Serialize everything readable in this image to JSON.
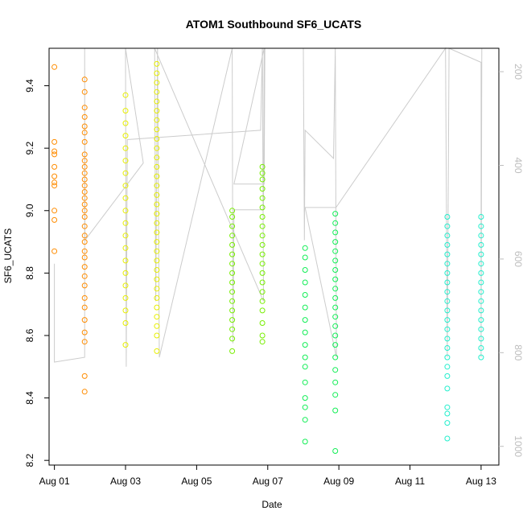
{
  "chart_data": {
    "type": "scatter",
    "title": "ATOM1 Southbound SF6_UCATS",
    "xlabel": "Date",
    "ylabel": "SF6_UCATS",
    "x_ticks": [
      "Aug 01",
      "Aug 03",
      "Aug 05",
      "Aug 07",
      "Aug 09",
      "Aug 11",
      "Aug 13"
    ],
    "x_tick_days": [
      1,
      3,
      5,
      7,
      9,
      11,
      13
    ],
    "xlim": [
      0.85,
      13.5
    ],
    "ylim": [
      8.185,
      9.52
    ],
    "y_ticks": [
      8.2,
      8.4,
      8.6,
      8.8,
      9.0,
      9.2,
      9.4
    ],
    "right_axis": {
      "label": "",
      "ticks": [
        200,
        400,
        600,
        800,
        1000
      ],
      "lim": [
        1040,
        150
      ],
      "color": "#bdbdbd"
    },
    "grid": false,
    "series": [
      {
        "color": "#ff8c00",
        "points": [
          [
            1.0,
            9.46
          ],
          [
            1.0,
            9.22
          ],
          [
            1.0,
            9.19
          ],
          [
            1.0,
            9.18
          ],
          [
            1.0,
            9.14
          ],
          [
            1.0,
            9.11
          ],
          [
            1.0,
            9.09
          ],
          [
            1.0,
            9.08
          ],
          [
            1.0,
            9.0
          ],
          [
            1.0,
            8.97
          ],
          [
            1.0,
            8.87
          ],
          [
            1.85,
            9.42
          ],
          [
            1.85,
            9.38
          ],
          [
            1.85,
            9.33
          ],
          [
            1.85,
            9.3
          ],
          [
            1.85,
            9.27
          ],
          [
            1.85,
            9.25
          ],
          [
            1.85,
            9.22
          ],
          [
            1.85,
            9.18
          ],
          [
            1.85,
            9.16
          ],
          [
            1.85,
            9.14
          ],
          [
            1.85,
            9.12
          ],
          [
            1.85,
            9.1
          ],
          [
            1.85,
            9.08
          ],
          [
            1.85,
            9.06
          ],
          [
            1.85,
            9.04
          ],
          [
            1.85,
            9.02
          ],
          [
            1.85,
            9.0
          ],
          [
            1.85,
            8.98
          ],
          [
            1.85,
            8.95
          ],
          [
            1.85,
            8.92
          ],
          [
            1.85,
            8.9
          ],
          [
            1.85,
            8.87
          ],
          [
            1.85,
            8.85
          ],
          [
            1.85,
            8.82
          ],
          [
            1.85,
            8.79
          ],
          [
            1.85,
            8.76
          ],
          [
            1.85,
            8.72
          ],
          [
            1.85,
            8.69
          ],
          [
            1.85,
            8.65
          ],
          [
            1.85,
            8.61
          ],
          [
            1.85,
            8.58
          ],
          [
            1.85,
            8.47
          ],
          [
            1.85,
            8.42
          ]
        ]
      },
      {
        "color": "#e6ee00",
        "points": [
          [
            3.0,
            9.37
          ],
          [
            3.0,
            9.32
          ],
          [
            3.0,
            9.28
          ],
          [
            3.0,
            9.24
          ],
          [
            3.0,
            9.2
          ],
          [
            3.0,
            9.16
          ],
          [
            3.0,
            9.12
          ],
          [
            3.0,
            9.08
          ],
          [
            3.0,
            9.04
          ],
          [
            3.0,
            9.0
          ],
          [
            3.0,
            8.96
          ],
          [
            3.0,
            8.92
          ],
          [
            3.0,
            8.88
          ],
          [
            3.0,
            8.84
          ],
          [
            3.0,
            8.8
          ],
          [
            3.0,
            8.76
          ],
          [
            3.0,
            8.72
          ],
          [
            3.0,
            8.68
          ],
          [
            3.0,
            8.64
          ],
          [
            3.0,
            8.57
          ],
          [
            3.88,
            9.47
          ],
          [
            3.88,
            9.44
          ],
          [
            3.88,
            9.41
          ],
          [
            3.88,
            9.38
          ],
          [
            3.88,
            9.35
          ],
          [
            3.88,
            9.32
          ],
          [
            3.88,
            9.29
          ],
          [
            3.88,
            9.26
          ],
          [
            3.88,
            9.23
          ],
          [
            3.88,
            9.2
          ],
          [
            3.88,
            9.17
          ],
          [
            3.88,
            9.14
          ],
          [
            3.88,
            9.11
          ],
          [
            3.88,
            9.08
          ],
          [
            3.88,
            9.05
          ],
          [
            3.88,
            9.02
          ],
          [
            3.88,
            8.99
          ],
          [
            3.88,
            8.96
          ],
          [
            3.88,
            8.93
          ],
          [
            3.88,
            8.9
          ],
          [
            3.88,
            8.87
          ],
          [
            3.88,
            8.84
          ],
          [
            3.88,
            8.81
          ],
          [
            3.88,
            8.78
          ],
          [
            3.88,
            8.75
          ],
          [
            3.88,
            8.72
          ],
          [
            3.88,
            8.69
          ],
          [
            3.88,
            8.66
          ],
          [
            3.88,
            8.63
          ],
          [
            3.88,
            8.6
          ],
          [
            3.88,
            8.55
          ]
        ]
      },
      {
        "color": "#77ee00",
        "points": [
          [
            6.0,
            9.0
          ],
          [
            6.0,
            8.98
          ],
          [
            6.0,
            8.95
          ],
          [
            6.0,
            8.92
          ],
          [
            6.0,
            8.89
          ],
          [
            6.0,
            8.86
          ],
          [
            6.0,
            8.83
          ],
          [
            6.0,
            8.8
          ],
          [
            6.0,
            8.77
          ],
          [
            6.0,
            8.74
          ],
          [
            6.0,
            8.71
          ],
          [
            6.0,
            8.68
          ],
          [
            6.0,
            8.65
          ],
          [
            6.0,
            8.62
          ],
          [
            6.0,
            8.59
          ],
          [
            6.0,
            8.55
          ],
          [
            6.85,
            9.14
          ],
          [
            6.85,
            9.12
          ],
          [
            6.85,
            9.1
          ],
          [
            6.85,
            9.07
          ],
          [
            6.85,
            9.04
          ],
          [
            6.85,
            9.01
          ],
          [
            6.85,
            8.98
          ],
          [
            6.85,
            8.95
          ],
          [
            6.85,
            8.92
          ],
          [
            6.85,
            8.89
          ],
          [
            6.85,
            8.86
          ],
          [
            6.85,
            8.83
          ],
          [
            6.85,
            8.8
          ],
          [
            6.85,
            8.77
          ],
          [
            6.85,
            8.74
          ],
          [
            6.85,
            8.71
          ],
          [
            6.85,
            8.68
          ],
          [
            6.85,
            8.64
          ],
          [
            6.85,
            8.6
          ],
          [
            6.85,
            8.58
          ]
        ]
      },
      {
        "color": "#11ee55",
        "points": [
          [
            8.05,
            8.88
          ],
          [
            8.05,
            8.85
          ],
          [
            8.05,
            8.81
          ],
          [
            8.05,
            8.77
          ],
          [
            8.05,
            8.73
          ],
          [
            8.05,
            8.69
          ],
          [
            8.05,
            8.65
          ],
          [
            8.05,
            8.61
          ],
          [
            8.05,
            8.57
          ],
          [
            8.05,
            8.53
          ],
          [
            8.05,
            8.5
          ],
          [
            8.05,
            8.45
          ],
          [
            8.05,
            8.4
          ],
          [
            8.05,
            8.37
          ],
          [
            8.05,
            8.33
          ],
          [
            8.05,
            8.26
          ],
          [
            8.9,
            8.99
          ],
          [
            8.9,
            8.96
          ],
          [
            8.9,
            8.93
          ],
          [
            8.9,
            8.9
          ],
          [
            8.9,
            8.87
          ],
          [
            8.9,
            8.84
          ],
          [
            8.9,
            8.81
          ],
          [
            8.9,
            8.78
          ],
          [
            8.9,
            8.75
          ],
          [
            8.9,
            8.72
          ],
          [
            8.9,
            8.69
          ],
          [
            8.9,
            8.66
          ],
          [
            8.9,
            8.63
          ],
          [
            8.9,
            8.6
          ],
          [
            8.9,
            8.57
          ],
          [
            8.9,
            8.53
          ],
          [
            8.9,
            8.49
          ],
          [
            8.9,
            8.45
          ],
          [
            8.9,
            8.41
          ],
          [
            8.9,
            8.36
          ],
          [
            8.9,
            8.23
          ]
        ]
      },
      {
        "color": "#22eecc",
        "points": [
          [
            12.05,
            8.98
          ],
          [
            12.05,
            8.95
          ],
          [
            12.05,
            8.92
          ],
          [
            12.05,
            8.89
          ],
          [
            12.05,
            8.86
          ],
          [
            12.05,
            8.83
          ],
          [
            12.05,
            8.8
          ],
          [
            12.05,
            8.77
          ],
          [
            12.05,
            8.74
          ],
          [
            12.05,
            8.71
          ],
          [
            12.05,
            8.68
          ],
          [
            12.05,
            8.65
          ],
          [
            12.05,
            8.62
          ],
          [
            12.05,
            8.59
          ],
          [
            12.05,
            8.56
          ],
          [
            12.05,
            8.53
          ],
          [
            12.05,
            8.5
          ],
          [
            12.05,
            8.47
          ],
          [
            12.05,
            8.43
          ],
          [
            12.05,
            8.37
          ],
          [
            12.05,
            8.35
          ],
          [
            12.05,
            8.32
          ],
          [
            12.05,
            8.27
          ],
          [
            13.0,
            8.98
          ],
          [
            13.0,
            8.95
          ],
          [
            13.0,
            8.92
          ],
          [
            13.0,
            8.89
          ],
          [
            13.0,
            8.86
          ],
          [
            13.0,
            8.83
          ],
          [
            13.0,
            8.8
          ],
          [
            13.0,
            8.77
          ],
          [
            13.0,
            8.74
          ],
          [
            13.0,
            8.71
          ],
          [
            13.0,
            8.68
          ],
          [
            13.0,
            8.65
          ],
          [
            13.0,
            8.62
          ],
          [
            13.0,
            8.59
          ],
          [
            13.0,
            8.56
          ],
          [
            13.0,
            8.53
          ]
        ]
      }
    ],
    "altitude_track": {
      "color": "#cccccc",
      "points": [
        [
          1.0,
          610
        ],
        [
          1.0,
          820
        ],
        [
          1.85,
          810
        ],
        [
          1.85,
          150
        ],
        [
          1.86,
          560
        ],
        [
          3.5,
          395
        ],
        [
          3.0,
          150
        ],
        [
          3.02,
          830
        ],
        [
          3.05,
          345
        ],
        [
          6.8,
          325
        ],
        [
          6.85,
          150
        ],
        [
          6.88,
          690
        ],
        [
          3.82,
          150
        ],
        [
          3.85,
          690
        ],
        [
          3.9,
          150
        ],
        [
          3.95,
          810
        ],
        [
          6.0,
          150
        ],
        [
          6.02,
          780
        ],
        [
          6.05,
          495
        ],
        [
          6.88,
          495
        ],
        [
          6.9,
          150
        ],
        [
          6.05,
          440
        ],
        [
          6.9,
          440
        ],
        [
          6.92,
          150
        ],
        [
          8.0,
          150
        ],
        [
          8.03,
          560
        ],
        [
          8.05,
          325
        ],
        [
          8.85,
          385
        ],
        [
          8.9,
          150
        ],
        [
          8.93,
          810
        ],
        [
          8.05,
          490
        ],
        [
          8.92,
          490
        ],
        [
          12.0,
          150
        ],
        [
          12.05,
          810
        ],
        [
          12.1,
          150
        ],
        [
          13.0,
          180
        ],
        [
          13.0,
          810
        ],
        [
          13.02,
          150
        ]
      ]
    }
  }
}
